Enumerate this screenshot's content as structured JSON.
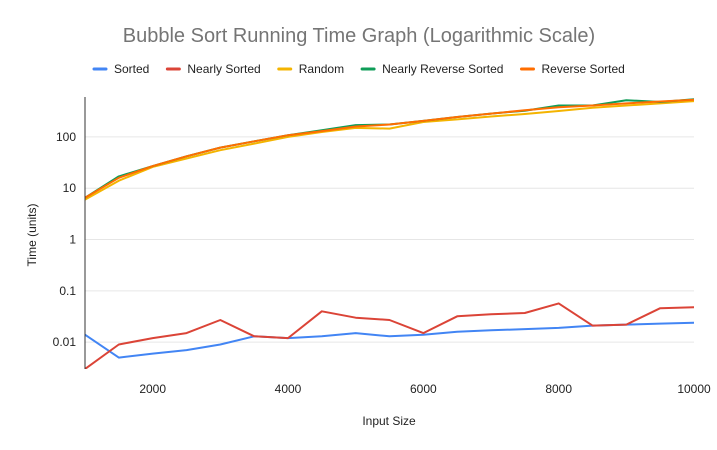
{
  "chart_data": {
    "type": "line",
    "title": "Bubble Sort Running Time Graph (Logarithmic Scale)",
    "xlabel": "Input Size",
    "ylabel": "Time (units)",
    "xlim": [
      1000,
      10000
    ],
    "ylim": [
      0.003,
      600
    ],
    "yscale": "log",
    "grid": true,
    "legend_position": "top",
    "x_ticks": [
      2000,
      4000,
      6000,
      8000,
      10000
    ],
    "x_tick_labels": [
      "2000",
      "4000",
      "6000",
      "8000",
      "10000"
    ],
    "y_ticks": [
      0.01,
      0.1,
      1,
      10,
      100
    ],
    "y_tick_labels": [
      "0.01",
      "0.1",
      "1",
      "10",
      "100"
    ],
    "x": [
      1000,
      1500,
      2000,
      2500,
      3000,
      3500,
      4000,
      4500,
      5000,
      5500,
      6000,
      6500,
      7000,
      7500,
      8000,
      8500,
      9000,
      9500,
      10000
    ],
    "series": [
      {
        "name": "Sorted",
        "color": "#4285f4",
        "values": [
          0.014,
          0.005,
          0.006,
          0.007,
          0.009,
          0.013,
          0.012,
          0.013,
          0.015,
          0.013,
          0.014,
          0.016,
          0.017,
          0.018,
          0.019,
          0.021,
          0.022,
          0.023,
          0.024
        ]
      },
      {
        "name": "Nearly Sorted",
        "color": "#db4437",
        "values": [
          0.003,
          0.009,
          0.012,
          0.015,
          0.027,
          0.013,
          0.012,
          0.04,
          0.03,
          0.027,
          0.015,
          0.032,
          0.035,
          0.037,
          0.057,
          0.021,
          0.022,
          0.046,
          0.048
        ]
      },
      {
        "name": "Random",
        "color": "#f4b400",
        "values": [
          6,
          14,
          26,
          38,
          55,
          74,
          100,
          125,
          150,
          145,
          195,
          220,
          250,
          280,
          320,
          370,
          410,
          450,
          500
        ]
      },
      {
        "name": "Nearly Reverse Sorted",
        "color": "#0f9d58",
        "values": [
          6.5,
          17,
          27,
          42,
          62,
          82,
          108,
          135,
          170,
          175,
          205,
          245,
          285,
          325,
          410,
          410,
          520,
          480,
          540
        ]
      },
      {
        "name": "Reverse Sorted",
        "color": "#ff6d00",
        "values": [
          6.5,
          16,
          27,
          42,
          62,
          82,
          108,
          130,
          160,
          175,
          205,
          245,
          285,
          330,
          380,
          410,
          450,
          490,
          530
        ]
      }
    ]
  }
}
